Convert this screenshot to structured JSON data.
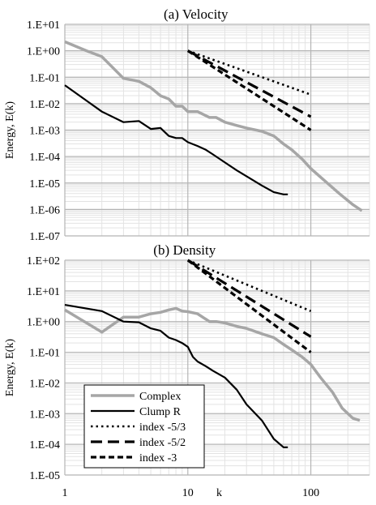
{
  "chart_data": [
    {
      "type": "line",
      "title": "(a) Velocity",
      "ylabel": "Energy, E(k)",
      "xlabel": "",
      "xscale": "log",
      "yscale": "log",
      "xlim": [
        1,
        300
      ],
      "ylim": [
        1e-07,
        10
      ],
      "grid": true,
      "x_tick_labels": [],
      "y_ticks": [
        {
          "value": 10,
          "label": "1.E+01"
        },
        {
          "value": 1,
          "label": "1.E+00"
        },
        {
          "value": 0.1,
          "label": "1.E-01"
        },
        {
          "value": 0.01,
          "label": "1.E-02"
        },
        {
          "value": 0.001,
          "label": "1.E-03"
        },
        {
          "value": 0.0001,
          "label": "1.E-04"
        },
        {
          "value": 1e-05,
          "label": "1.E-05"
        },
        {
          "value": 1e-06,
          "label": "1.E-06"
        },
        {
          "value": 1e-07,
          "label": "1.E-07"
        }
      ],
      "series": [
        {
          "name": "Complex",
          "style": "gray-solid",
          "color": "#a6a6a6",
          "points": [
            [
              1,
              2.2
            ],
            [
              1.5,
              1.0
            ],
            [
              2,
              0.6
            ],
            [
              3,
              0.09
            ],
            [
              4,
              0.07
            ],
            [
              5,
              0.04
            ],
            [
              6,
              0.02
            ],
            [
              7,
              0.015
            ],
            [
              8,
              0.008
            ],
            [
              9,
              0.008
            ],
            [
              10,
              0.005
            ],
            [
              12,
              0.005
            ],
            [
              15,
              0.003
            ],
            [
              17,
              0.003
            ],
            [
              20,
              0.002
            ],
            [
              25,
              0.0015
            ],
            [
              30,
              0.0012
            ],
            [
              40,
              0.0009
            ],
            [
              50,
              0.0006
            ],
            [
              60,
              0.0003
            ],
            [
              70,
              0.00018
            ],
            [
              85,
              8e-05
            ],
            [
              100,
              3.5e-05
            ],
            [
              130,
              1.2e-05
            ],
            [
              170,
              4e-06
            ],
            [
              220,
              1.5e-06
            ],
            [
              260,
              9e-07
            ]
          ]
        },
        {
          "name": "Clump R",
          "style": "black-solid",
          "color": "#000000",
          "points": [
            [
              1,
              0.05
            ],
            [
              2,
              0.005
            ],
            [
              3,
              0.002
            ],
            [
              4,
              0.0022
            ],
            [
              5,
              0.0011
            ],
            [
              6,
              0.0012
            ],
            [
              7,
              0.0006
            ],
            [
              8,
              0.0005
            ],
            [
              9,
              0.0005
            ],
            [
              10,
              0.00035
            ],
            [
              12,
              0.00025
            ],
            [
              14,
              0.00018
            ],
            [
              16,
              0.00012
            ],
            [
              20,
              6e-05
            ],
            [
              25,
              3e-05
            ],
            [
              30,
              1.8e-05
            ],
            [
              40,
              8e-06
            ],
            [
              50,
              4.5e-06
            ],
            [
              60,
              3.7e-06
            ],
            [
              65,
              3.7e-06
            ]
          ]
        },
        {
          "name": "index -5/3",
          "style": "dotted",
          "color": "#000000",
          "points": [
            [
              10,
              1.0
            ],
            [
              100,
              0.022
            ]
          ]
        },
        {
          "name": "index -5/2",
          "style": "long-dash",
          "color": "#000000",
          "points": [
            [
              10,
              1.0
            ],
            [
              100,
              0.0032
            ]
          ]
        },
        {
          "name": "index -3",
          "style": "short-dash",
          "color": "#000000",
          "points": [
            [
              10,
              1.0
            ],
            [
              100,
              0.001
            ]
          ]
        }
      ]
    },
    {
      "type": "line",
      "title": "(b) Density",
      "ylabel": "Energy, E(k)",
      "xlabel": "k",
      "xscale": "log",
      "yscale": "log",
      "xlim": [
        1,
        300
      ],
      "ylim": [
        1e-05,
        100
      ],
      "grid": true,
      "x_tick_labels": [
        {
          "value": 1,
          "label": "1"
        },
        {
          "value": 10,
          "label": "10"
        },
        {
          "value": 100,
          "label": "100"
        }
      ],
      "y_ticks": [
        {
          "value": 100,
          "label": "1.E+02"
        },
        {
          "value": 10,
          "label": "1.E+01"
        },
        {
          "value": 1,
          "label": "1.E+00"
        },
        {
          "value": 0.1,
          "label": "1.E-01"
        },
        {
          "value": 0.01,
          "label": "1.E-02"
        },
        {
          "value": 0.001,
          "label": "1.E-03"
        },
        {
          "value": 0.0001,
          "label": "1.E-04"
        },
        {
          "value": 1e-05,
          "label": "1.E-05"
        }
      ],
      "legend_position": "bottom-left",
      "series": [
        {
          "name": "Complex",
          "style": "gray-solid",
          "color": "#a6a6a6",
          "points": [
            [
              1,
              2.4
            ],
            [
              2,
              0.45
            ],
            [
              3,
              1.4
            ],
            [
              4,
              1.4
            ],
            [
              5,
              1.8
            ],
            [
              6,
              2.0
            ],
            [
              7,
              2.4
            ],
            [
              8,
              2.7
            ],
            [
              9,
              2.2
            ],
            [
              10,
              2.1
            ],
            [
              12,
              1.8
            ],
            [
              15,
              1.0
            ],
            [
              17,
              1.0
            ],
            [
              20,
              0.9
            ],
            [
              25,
              0.7
            ],
            [
              30,
              0.6
            ],
            [
              40,
              0.4
            ],
            [
              50,
              0.3
            ],
            [
              60,
              0.18
            ],
            [
              70,
              0.12
            ],
            [
              85,
              0.07
            ],
            [
              100,
              0.04
            ],
            [
              120,
              0.015
            ],
            [
              150,
              0.005
            ],
            [
              180,
              0.0015
            ],
            [
              220,
              0.0007
            ],
            [
              250,
              0.0006
            ]
          ]
        },
        {
          "name": "Clump R",
          "style": "black-solid",
          "color": "#000000",
          "points": [
            [
              1,
              3.5
            ],
            [
              2,
              2.2
            ],
            [
              3,
              1.0
            ],
            [
              4,
              0.95
            ],
            [
              5,
              0.6
            ],
            [
              6,
              0.5
            ],
            [
              7,
              0.3
            ],
            [
              8,
              0.25
            ],
            [
              9,
              0.2
            ],
            [
              10,
              0.15
            ],
            [
              11,
              0.07
            ],
            [
              12,
              0.05
            ],
            [
              14,
              0.035
            ],
            [
              16,
              0.025
            ],
            [
              20,
              0.015
            ],
            [
              25,
              0.006
            ],
            [
              30,
              0.002
            ],
            [
              40,
              0.0006
            ],
            [
              50,
              0.00015
            ],
            [
              60,
              8e-05
            ],
            [
              65,
              8e-05
            ]
          ]
        },
        {
          "name": "index -5/3",
          "style": "dotted",
          "color": "#000000",
          "points": [
            [
              10,
              100
            ],
            [
              100,
              2.2
            ]
          ]
        },
        {
          "name": "index -5/2",
          "style": "long-dash",
          "color": "#000000",
          "points": [
            [
              10,
              100
            ],
            [
              100,
              0.32
            ]
          ]
        },
        {
          "name": "index -3",
          "style": "short-dash",
          "color": "#000000",
          "points": [
            [
              10,
              100
            ],
            [
              100,
              0.1
            ]
          ]
        }
      ]
    }
  ]
}
